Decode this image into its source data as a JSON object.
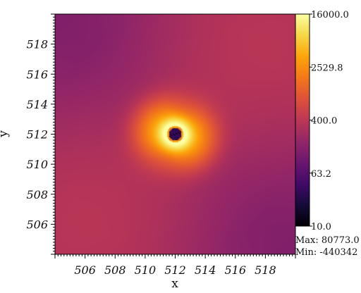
{
  "chart_data": {
    "type": "heatmap",
    "title": "",
    "xlabel": "x",
    "ylabel": "y",
    "x_range": [
      504.0,
      520.0
    ],
    "y_range": [
      504.0,
      520.0
    ],
    "x_ticks": [
      506,
      508,
      510,
      512,
      514,
      516,
      518
    ],
    "y_ticks": [
      506,
      508,
      510,
      512,
      514,
      516,
      518
    ],
    "x_tick_labels": [
      "506",
      "508",
      "510",
      "512",
      "514",
      "516",
      "518"
    ],
    "y_tick_labels": [
      "506",
      "508",
      "510",
      "512",
      "514",
      "516",
      "518"
    ],
    "colormap": "inferno",
    "color_scale": "log",
    "colorbar": {
      "ticks": [
        16000.0,
        2529.8,
        400.0,
        63.2,
        10.0
      ],
      "tick_labels": [
        "16000.0",
        "2529.8",
        "400.0",
        "63.2",
        "10.0"
      ],
      "range": [
        10.0,
        16000.0
      ]
    },
    "source_center": [
      512.0,
      512.0
    ],
    "background_level": 400.0,
    "stats": {
      "max_label": "Max: 80773.0",
      "min_label": "Min: -440342"
    }
  }
}
